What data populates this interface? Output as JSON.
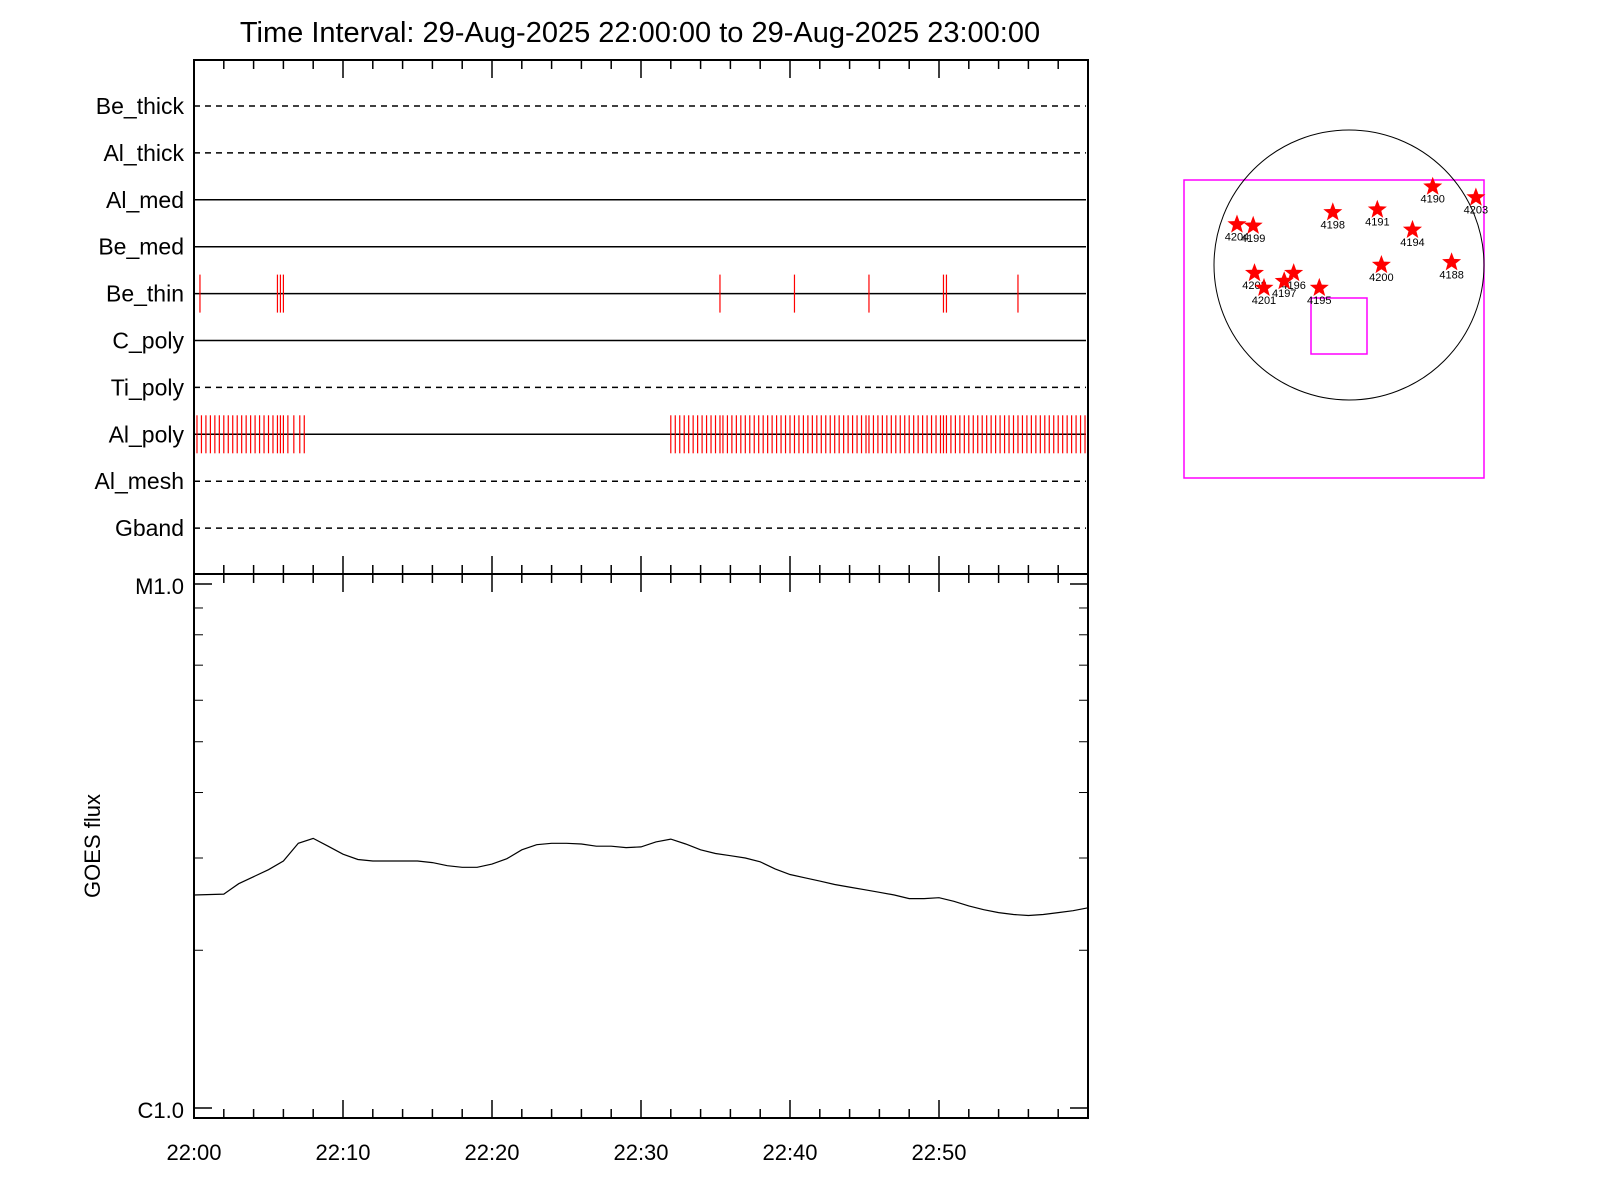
{
  "title": "Time Interval: 29-Aug-2025 22:00:00 to 29-Aug-2025 23:00:00",
  "filters": [
    {
      "name": "Be_thick",
      "style": "dashed"
    },
    {
      "name": "Al_thick",
      "style": "dashed"
    },
    {
      "name": "Al_med",
      "style": "solid"
    },
    {
      "name": "Be_med",
      "style": "solid"
    },
    {
      "name": "Be_thin",
      "style": "solid"
    },
    {
      "name": "C_poly",
      "style": "solid"
    },
    {
      "name": "Ti_poly",
      "style": "dashed"
    },
    {
      "name": "Al_poly",
      "style": "solid"
    },
    {
      "name": "Al_mesh",
      "style": "dashed"
    },
    {
      "name": "Gband",
      "style": "dashed"
    }
  ],
  "chart_data": [
    {
      "type": "timeline",
      "filter_rows": [
        "Be_thick",
        "Al_thick",
        "Al_med",
        "Be_med",
        "Be_thin",
        "C_poly",
        "Ti_poly",
        "Al_poly",
        "Al_mesh",
        "Gband"
      ],
      "x_range_minutes": [
        0,
        60
      ],
      "observations_color": "#ff0000",
      "observations": [
        {
          "filter": "Be_thin",
          "times_min": [
            0.4,
            5.6,
            5.8,
            6.0,
            35.3,
            40.3,
            45.3,
            50.3,
            50.5,
            55.3
          ]
        },
        {
          "filter": "Al_poly",
          "times_min": [
            0.2,
            0.5,
            0.8,
            1.1,
            1.4,
            1.7,
            2.0,
            2.3,
            2.6,
            2.9,
            3.2,
            3.5,
            3.8,
            4.1,
            4.4,
            4.7,
            5.0,
            5.3,
            5.6,
            5.8,
            6.0,
            6.3,
            6.7,
            7.1,
            7.4,
            32.0,
            32.3,
            32.6,
            32.9,
            33.2,
            33.5,
            33.8,
            34.1,
            34.4,
            34.7,
            35.0,
            35.3,
            35.5,
            35.8,
            36.1,
            36.4,
            36.7,
            37.0,
            37.3,
            37.6,
            37.9,
            38.2,
            38.5,
            38.8,
            39.1,
            39.4,
            39.7,
            40.0,
            40.3,
            40.6,
            40.9,
            41.2,
            41.5,
            41.8,
            42.1,
            42.4,
            42.7,
            43.0,
            43.3,
            43.6,
            43.9,
            44.2,
            44.5,
            44.8,
            45.1,
            45.3,
            45.6,
            45.9,
            46.2,
            46.5,
            46.8,
            47.1,
            47.4,
            47.7,
            48.0,
            48.3,
            48.6,
            48.9,
            49.2,
            49.5,
            49.8,
            50.1,
            50.3,
            50.5,
            50.8,
            51.1,
            51.4,
            51.7,
            52.0,
            52.3,
            52.6,
            52.9,
            53.2,
            53.5,
            53.8,
            54.1,
            54.4,
            54.7,
            55.0,
            55.3,
            55.6,
            55.9,
            56.2,
            56.5,
            56.8,
            57.1,
            57.4,
            57.7,
            58.0,
            58.3,
            58.6,
            58.9,
            59.2,
            59.5,
            59.8
          ]
        }
      ]
    },
    {
      "type": "line",
      "ylabel": "GOES flux",
      "yscale": "log",
      "ylim": [
        1e-06,
        1e-05
      ],
      "ytick_labels": [
        "M1.0",
        "C1.0"
      ],
      "xtick_labels": [
        "22:00",
        "22:10",
        "22:20",
        "22:30",
        "22:40",
        "22:50"
      ],
      "x_minutes": [
        0,
        2,
        3,
        5,
        6,
        7,
        8,
        9,
        10,
        11,
        12,
        13,
        14,
        15,
        16,
        17,
        18,
        19,
        20,
        21,
        22,
        23,
        24,
        25,
        26,
        27,
        28,
        29,
        30,
        31,
        32,
        33,
        34,
        35,
        36,
        37,
        38,
        39,
        40,
        41,
        42,
        43,
        44,
        45,
        46,
        47,
        48,
        49,
        50,
        51,
        52,
        53,
        54,
        55,
        56,
        57,
        58,
        59,
        60
      ],
      "series": [
        {
          "values": [
            2.55e-06,
            2.56e-06,
            2.68e-06,
            2.85e-06,
            2.96e-06,
            3.2e-06,
            3.27e-06,
            3.16e-06,
            3.05e-06,
            2.98e-06,
            2.96e-06,
            2.96e-06,
            2.96e-06,
            2.96e-06,
            2.94e-06,
            2.9e-06,
            2.88e-06,
            2.88e-06,
            2.92e-06,
            2.99e-06,
            3.11e-06,
            3.18e-06,
            3.2e-06,
            3.2e-06,
            3.19e-06,
            3.16e-06,
            3.16e-06,
            3.14e-06,
            3.15e-06,
            3.22e-06,
            3.26e-06,
            3.19e-06,
            3.11e-06,
            3.06e-06,
            3.03e-06,
            3e-06,
            2.95e-06,
            2.86e-06,
            2.79e-06,
            2.75e-06,
            2.71e-06,
            2.67e-06,
            2.64e-06,
            2.61e-06,
            2.58e-06,
            2.55e-06,
            2.51e-06,
            2.51e-06,
            2.52e-06,
            2.48e-06,
            2.43e-06,
            2.39e-06,
            2.36e-06,
            2.34e-06,
            2.33e-06,
            2.34e-06,
            2.36e-06,
            2.38e-06,
            2.41e-06
          ]
        }
      ]
    },
    {
      "type": "scatter",
      "description_role": "solar-disk-map",
      "colors": {
        "disk": "#000000",
        "fov": "#ff00ff",
        "markers": "#ff0000"
      },
      "points": [
        {
          "label": "4190",
          "x": 0.62,
          "y": 0.58
        },
        {
          "label": "4203",
          "x": 0.94,
          "y": 0.5
        },
        {
          "label": "4191",
          "x": 0.21,
          "y": 0.41
        },
        {
          "label": "4198",
          "x": -0.12,
          "y": 0.39
        },
        {
          "label": "4194",
          "x": 0.47,
          "y": 0.26
        },
        {
          "label": "4204",
          "x": -0.83,
          "y": 0.3
        },
        {
          "label": "4199",
          "x": -0.71,
          "y": 0.29
        },
        {
          "label": "4188",
          "x": 0.76,
          "y": 0.02
        },
        {
          "label": "4200",
          "x": 0.24,
          "y": 0.0
        },
        {
          "label": "4202",
          "x": -0.7,
          "y": -0.06
        },
        {
          "label": "4201",
          "x": -0.63,
          "y": -0.17
        },
        {
          "label": "4196",
          "x": -0.41,
          "y": -0.06
        },
        {
          "label": "4197",
          "x": -0.48,
          "y": -0.12
        },
        {
          "label": "4195",
          "x": -0.22,
          "y": -0.17
        }
      ]
    }
  ]
}
